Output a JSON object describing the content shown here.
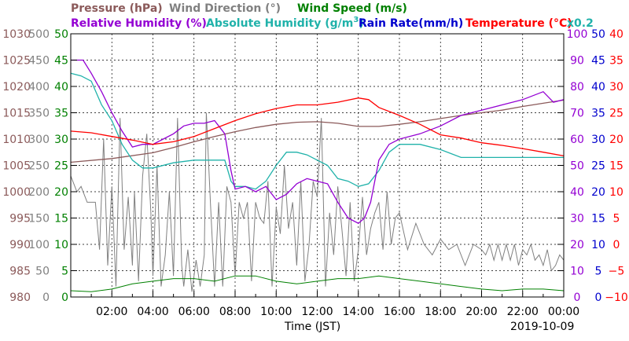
{
  "chart_data": {
    "type": "line",
    "date": "2019-10-09",
    "xlabel": "Time (JST)",
    "x_ticks": [
      "02:00",
      "04:00",
      "06:00",
      "08:00",
      "10:00",
      "12:00",
      "14:00",
      "16:00",
      "18:00",
      "20:00",
      "22:00",
      "00:00"
    ],
    "xlim": [
      0,
      24
    ],
    "legend": [
      {
        "label": "Pressure (hPa)",
        "color": "#8B5A5A"
      },
      {
        "label": "Wind Direction (°)",
        "color": "#808080"
      },
      {
        "label": "Wind Speed (m/s)",
        "color": "#008000"
      },
      {
        "label": "Relative Humidity (%)",
        "color": "#9400D3"
      },
      {
        "label": "Absolute Humidity (g/m",
        "sup": "3",
        "suffix": ")",
        "color": "#20B2AA"
      },
      {
        "label": "Rain Rate(mm/h)",
        "color": "#0000CD"
      },
      {
        "label": "Temperature (°C)",
        "color": "#FF0000"
      }
    ],
    "abs_humidity_scale_note": "x0.2",
    "axes": {
      "pressure": {
        "range": [
          980,
          1030
        ],
        "ticks": [
          "980",
          "985",
          "990",
          "995",
          "1000",
          "1005",
          "1010",
          "1015",
          "1020",
          "1025",
          "1030"
        ],
        "color": "#8B5A5A"
      },
      "wind_direction": {
        "range": [
          0,
          500
        ],
        "ticks": [
          "0",
          "50",
          "100",
          "150",
          "200",
          "250",
          "300",
          "350",
          "400",
          "450",
          "500"
        ],
        "color": "#808080"
      },
      "wind_speed": {
        "range": [
          0,
          50
        ],
        "ticks": [
          "0",
          "5",
          "10",
          "15",
          "20",
          "25",
          "30",
          "35",
          "40",
          "45",
          "50"
        ],
        "color": "#008000"
      },
      "relative_humidity": {
        "range": [
          0,
          100
        ],
        "ticks": [
          "0",
          "10",
          "20",
          "30",
          "40",
          "50",
          "60",
          "70",
          "80",
          "90",
          "100"
        ],
        "color": "#9400D3"
      },
      "rain_rate": {
        "range": [
          0,
          50
        ],
        "ticks": [
          "0",
          "5",
          "10",
          "15",
          "20",
          "25",
          "30",
          "35",
          "40",
          "45",
          "50"
        ],
        "color": "#0000CD"
      },
      "temperature": {
        "range": [
          -10,
          40
        ],
        "ticks": [
          "−10",
          "−5",
          "0",
          "5",
          "10",
          "15",
          "20",
          "25",
          "30",
          "35",
          "40"
        ],
        "color": "#FF0000"
      }
    },
    "series": [
      {
        "name": "Temperature (°C)",
        "axis": "temperature",
        "color": "#FF0000",
        "x": [
          0,
          1,
          2,
          3,
          4,
          5,
          6,
          7,
          8,
          9,
          10,
          11,
          12,
          13,
          14,
          14.5,
          15,
          16,
          17,
          18,
          19,
          20,
          21,
          22,
          23,
          24
        ],
        "y": [
          21.5,
          21.2,
          20.5,
          19.8,
          19.0,
          19.5,
          20.5,
          22.0,
          23.5,
          24.8,
          25.8,
          26.5,
          26.5,
          27.0,
          27.8,
          27.5,
          26.0,
          24.5,
          22.8,
          20.8,
          20.2,
          19.3,
          18.8,
          18.2,
          17.5,
          16.8
        ]
      },
      {
        "name": "Relative Humidity (%)",
        "axis": "relative_humidity",
        "color": "#9400D3",
        "x": [
          0,
          0.6,
          1,
          1.5,
          2,
          2.5,
          3,
          3.5,
          4,
          4.5,
          5,
          5.5,
          6,
          6.5,
          7,
          7.5,
          7.8,
          8,
          8.5,
          9,
          9.5,
          10,
          10.5,
          11,
          11.5,
          12,
          12.5,
          13,
          13.5,
          14,
          14.3,
          14.6,
          15,
          15.5,
          16,
          17,
          18,
          19,
          20,
          21,
          22,
          23,
          23.5,
          24
        ],
        "y": [
          90,
          90,
          85,
          78,
          70,
          63,
          57,
          58,
          58,
          60,
          62,
          65,
          66,
          66,
          67,
          62,
          48,
          41,
          42,
          40,
          42,
          37,
          39,
          43,
          45,
          44,
          43,
          36,
          30,
          28,
          30,
          36,
          52,
          58,
          60,
          62,
          65,
          69,
          71,
          73,
          75,
          78,
          74,
          75
        ]
      },
      {
        "name": "Absolute Humidity (g/m³)",
        "axis": "relative_humidity",
        "color": "#20B2AA",
        "x": [
          0,
          0.5,
          1,
          1.5,
          2,
          2.5,
          3,
          3.5,
          4,
          5,
          6,
          7,
          7.5,
          7.8,
          8,
          8.5,
          9,
          9.5,
          10,
          10.5,
          11,
          11.5,
          12,
          12.5,
          13,
          13.5,
          14,
          14.5,
          15,
          15.5,
          16,
          17,
          18,
          19,
          20,
          21,
          22,
          23,
          24
        ],
        "y": [
          85,
          84,
          82,
          73,
          67,
          58,
          52,
          49,
          49,
          51,
          52,
          52,
          52,
          44,
          42,
          42,
          41,
          44,
          50,
          55,
          55,
          54,
          52,
          50,
          45,
          44,
          42,
          43,
          48,
          55,
          58,
          58,
          56,
          53,
          53,
          53,
          53,
          53,
          53
        ]
      },
      {
        "name": "Pressure (hPa)",
        "axis": "pressure",
        "color": "#8B5A5A",
        "x": [
          0,
          2,
          4,
          5,
          6,
          7,
          8,
          9,
          10,
          11,
          12,
          13,
          14,
          15,
          16,
          17,
          18,
          19,
          20,
          21,
          22,
          23,
          24
        ],
        "y": [
          1005.6,
          1006.3,
          1007.4,
          1008.4,
          1009.5,
          1010.5,
          1011.4,
          1012.2,
          1012.8,
          1013.2,
          1013.3,
          1013.0,
          1012.4,
          1012.4,
          1012.8,
          1013.3,
          1013.9,
          1014.5,
          1015.0,
          1015.5,
          1016.2,
          1016.8,
          1017.4
        ]
      },
      {
        "name": "Wind Direction (°)",
        "axis": "wind_direction",
        "color": "#808080",
        "x": [
          0,
          0.3,
          0.5,
          0.8,
          1.2,
          1.4,
          1.6,
          1.8,
          2.0,
          2.2,
          2.4,
          2.6,
          2.8,
          3.0,
          3.1,
          3.3,
          3.5,
          3.7,
          3.9,
          4.0,
          4.2,
          4.4,
          4.6,
          4.8,
          5.0,
          5.2,
          5.4,
          5.5,
          5.7,
          5.9,
          6.1,
          6.3,
          6.5,
          6.6,
          6.8,
          7.0,
          7.2,
          7.4,
          7.6,
          7.8,
          8.0,
          8.2,
          8.4,
          8.6,
          8.8,
          9.0,
          9.2,
          9.4,
          9.6,
          9.8,
          10.0,
          10.2,
          10.4,
          10.6,
          10.8,
          11.0,
          11.2,
          11.4,
          11.6,
          11.8,
          12.0,
          12.2,
          12.4,
          12.6,
          12.8,
          13.0,
          13.2,
          13.4,
          13.6,
          13.8,
          14.0,
          14.2,
          14.4,
          14.6,
          14.8,
          15.0,
          15.2,
          15.4,
          15.6,
          15.8,
          16.0,
          16.4,
          16.8,
          17.2,
          17.6,
          18.0,
          18.4,
          18.8,
          19.2,
          19.6,
          20.0,
          20.2,
          20.4,
          20.6,
          20.8,
          21.0,
          21.2,
          21.4,
          21.6,
          21.8,
          22.0,
          22.2,
          22.4,
          22.6,
          22.8,
          23.0,
          23.2,
          23.4,
          23.6,
          23.8,
          24.0
        ],
        "y": [
          230,
          200,
          210,
          180,
          180,
          90,
          300,
          60,
          210,
          20,
          340,
          90,
          190,
          60,
          200,
          30,
          230,
          310,
          160,
          40,
          250,
          20,
          80,
          200,
          40,
          340,
          60,
          20,
          90,
          10,
          70,
          20,
          80,
          350,
          180,
          20,
          180,
          20,
          210,
          180,
          40,
          180,
          150,
          180,
          30,
          180,
          150,
          140,
          220,
          20,
          170,
          120,
          250,
          130,
          180,
          60,
          220,
          30,
          100,
          220,
          190,
          340,
          20,
          160,
          80,
          210,
          130,
          40,
          180,
          30,
          90,
          190,
          80,
          130,
          160,
          180,
          90,
          200,
          100,
          150,
          160,
          90,
          140,
          100,
          80,
          110,
          90,
          100,
          60,
          100,
          90,
          80,
          100,
          70,
          100,
          70,
          100,
          70,
          100,
          60,
          90,
          80,
          100,
          70,
          80,
          60,
          90,
          50,
          60,
          80,
          70
        ]
      },
      {
        "name": "Wind Speed (m/s)",
        "axis": "wind_speed",
        "color": "#008000",
        "x": [
          0,
          1,
          2,
          3,
          4,
          5,
          6,
          7,
          8,
          9,
          10,
          11,
          12,
          13,
          14,
          15,
          16,
          17,
          18,
          19,
          20,
          21,
          22,
          23,
          24
        ],
        "y": [
          1.2,
          1.0,
          1.5,
          2.5,
          3.0,
          3.5,
          3.5,
          3.0,
          4.0,
          4.0,
          3.0,
          2.5,
          3.0,
          3.5,
          3.5,
          4.0,
          3.5,
          3.0,
          2.5,
          2.0,
          1.5,
          1.2,
          1.5,
          1.5,
          1.2
        ]
      },
      {
        "name": "Wind Speed (m/s)",
        "axis": "wind_speed",
        "color": "#008000",
        "style": "dashed",
        "x": [
          0,
          0.5,
          1,
          1.5,
          2,
          2.5,
          3,
          3.5,
          4,
          4.5,
          5,
          5.5,
          6,
          6.5,
          7,
          7.5,
          8,
          8.5,
          9,
          9.5,
          10,
          10.5,
          11,
          11.5,
          12,
          12.5,
          13,
          13.5,
          14,
          14.5,
          15,
          15.5,
          16,
          16.5,
          17,
          17.5,
          18,
          18.5,
          19,
          19.5,
          20,
          20.5,
          21,
          21.5,
          22,
          22.5,
          23,
          23.5,
          24
        ],
        "y": [
          2,
          1.5,
          3,
          2,
          4,
          3,
          5,
          4,
          6,
          5,
          7,
          5,
          6,
          4,
          8,
          5,
          7,
          6,
          9,
          5,
          7,
          6,
          6,
          5,
          7,
          5,
          6,
          4,
          7,
          5,
          6,
          5,
          5,
          4,
          5,
          4,
          4,
          3,
          4,
          3,
          3,
          2,
          3,
          2,
          3,
          2,
          3,
          2,
          2
        ]
      }
    ]
  }
}
